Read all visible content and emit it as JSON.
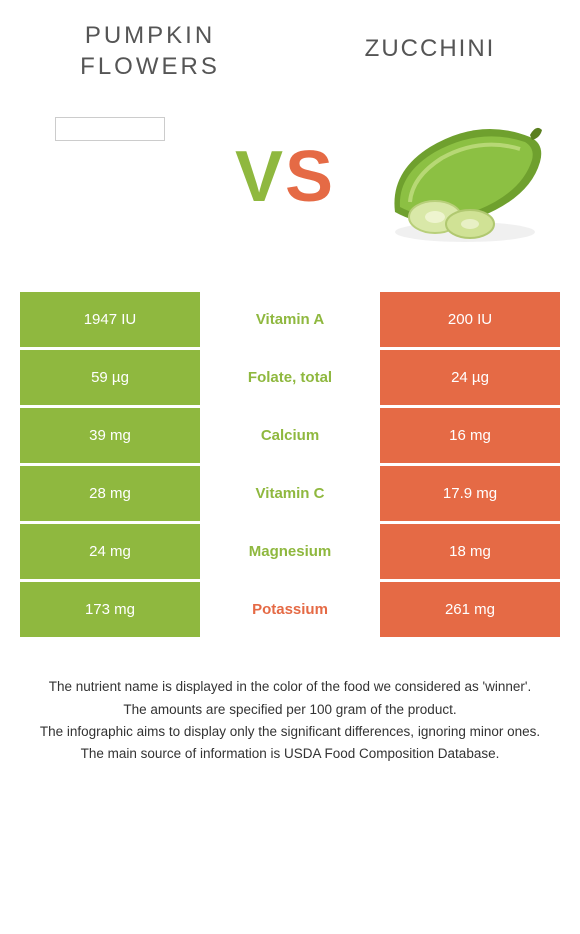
{
  "header": {
    "left_line1": "PUMPKIN",
    "left_line2": "FLOWERS",
    "right": "ZUCCHINI"
  },
  "vs": {
    "v": "V",
    "s": "S"
  },
  "colors": {
    "green": "#8fb83f",
    "orange": "#e56a45"
  },
  "table": {
    "rows": [
      {
        "left": "1947 IU",
        "label": "Vitamin A",
        "right": "200 IU",
        "winner": "green"
      },
      {
        "left": "59 µg",
        "label": "Folate, total",
        "right": "24 µg",
        "winner": "green"
      },
      {
        "left": "39 mg",
        "label": "Calcium",
        "right": "16 mg",
        "winner": "green"
      },
      {
        "left": "28 mg",
        "label": "Vitamin C",
        "right": "17.9 mg",
        "winner": "green"
      },
      {
        "left": "24 mg",
        "label": "Magnesium",
        "right": "18 mg",
        "winner": "green"
      },
      {
        "left": "173 mg",
        "label": "Potassium",
        "right": "261 mg",
        "winner": "orange"
      }
    ]
  },
  "footnotes": [
    "The nutrient name is displayed in the color of the food we considered as 'winner'.",
    "The amounts are specified per 100 gram of the product.",
    "The infographic aims to display only the significant differences, ignoring minor ones.",
    "The main source of information is USDA Food Composition Database."
  ]
}
